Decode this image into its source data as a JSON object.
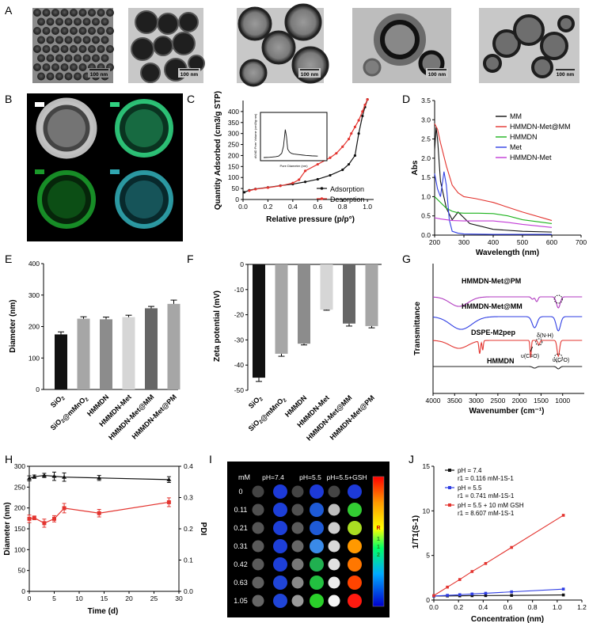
{
  "panels": {
    "A": "A",
    "B": "B",
    "C": "C",
    "D": "D",
    "E": "E",
    "F": "F",
    "G": "G",
    "H": "H",
    "I": "I",
    "J": "J"
  },
  "scale_bar": "100 nm",
  "chart_data": [
    {
      "id": "C",
      "type": "line",
      "xlabel": "Relative pressure (p/p°)",
      "ylabel": "Quantity Adsorbed (cm3/g STP)",
      "xlim": [
        0,
        1.05
      ],
      "ylim": [
        0,
        450
      ],
      "xticks": [
        0.0,
        0.2,
        0.4,
        0.6,
        0.8,
        1.0
      ],
      "yticks": [
        0,
        50,
        100,
        150,
        200,
        250,
        300,
        350,
        400
      ],
      "legend_position": "bottom-right",
      "series": [
        {
          "name": "Adsorption",
          "color": "#111111",
          "x": [
            0.01,
            0.05,
            0.1,
            0.2,
            0.3,
            0.4,
            0.5,
            0.6,
            0.7,
            0.8,
            0.85,
            0.9,
            0.93,
            0.96,
            0.98,
            1.0
          ],
          "y": [
            33,
            42,
            48,
            55,
            63,
            70,
            80,
            92,
            110,
            135,
            160,
            200,
            300,
            380,
            420,
            455
          ]
        },
        {
          "name": "Desorption",
          "color": "#e3342f",
          "x": [
            1.0,
            0.98,
            0.96,
            0.93,
            0.9,
            0.87,
            0.85,
            0.8,
            0.75,
            0.7,
            0.6,
            0.5,
            0.45,
            0.4,
            0.3,
            0.2,
            0.1,
            0.05
          ],
          "y": [
            455,
            430,
            400,
            360,
            330,
            300,
            275,
            240,
            210,
            190,
            160,
            130,
            90,
            75,
            62,
            54,
            47,
            40
          ]
        }
      ],
      "inset": {
        "xlabel": "Pore Diameter (nm)",
        "ylabel": "dV/dD Pore Volume (cm3/g·nm)",
        "xlim": [
          0,
          10
        ],
        "ylim": [
          0,
          0.3
        ],
        "x": [
          0,
          1,
          2,
          2.5,
          3,
          3.3,
          3.6,
          3.8,
          4,
          4.3,
          4.6,
          5,
          6,
          7,
          8,
          9
        ],
        "y": [
          0.0,
          0.002,
          0.006,
          0.01,
          0.03,
          0.08,
          0.2,
          0.15,
          0.06,
          0.04,
          0.03,
          0.025,
          0.02,
          0.015,
          0.012,
          0.01
        ]
      }
    },
    {
      "id": "D",
      "type": "line",
      "xlabel": "Wavelength (nm)",
      "ylabel": "Abs",
      "xlim": [
        200,
        700
      ],
      "ylim": [
        0,
        3.5
      ],
      "xticks": [
        200,
        300,
        400,
        500,
        600,
        700
      ],
      "yticks": [
        0.0,
        0.5,
        1.0,
        1.5,
        2.0,
        2.5,
        3.0,
        3.5
      ],
      "legend_position": "top-right",
      "series": [
        {
          "name": "MM",
          "color": "#111111",
          "x": [
            200,
            205,
            210,
            220,
            240,
            260,
            280,
            300,
            320,
            400,
            500,
            600
          ],
          "y": [
            2.2,
            2.8,
            2.5,
            1.4,
            0.7,
            0.4,
            0.6,
            0.45,
            0.3,
            0.15,
            0.1,
            0.08
          ]
        },
        {
          "name": "HMMDN-Met@MM",
          "color": "#e3342f",
          "x": [
            200,
            210,
            220,
            240,
            260,
            280,
            300,
            340,
            400,
            500,
            600
          ],
          "y": [
            2.9,
            2.75,
            2.4,
            1.8,
            1.3,
            1.1,
            1.0,
            0.95,
            0.85,
            0.6,
            0.38
          ]
        },
        {
          "name": "HMMDN",
          "color": "#1db31d",
          "x": [
            200,
            220,
            240,
            260,
            280,
            300,
            350,
            400,
            450,
            500,
            600
          ],
          "y": [
            1.0,
            0.85,
            0.7,
            0.62,
            0.58,
            0.57,
            0.57,
            0.56,
            0.5,
            0.4,
            0.3
          ]
        },
        {
          "name": "Met",
          "color": "#2f3ee3",
          "x": [
            200,
            210,
            220,
            232,
            240,
            250,
            260,
            280,
            300,
            400,
            600
          ],
          "y": [
            1.6,
            1.2,
            1.0,
            1.65,
            1.3,
            0.4,
            0.1,
            0.05,
            0.03,
            0.02,
            0.02
          ]
        },
        {
          "name": "HMMDN-Met",
          "color": "#c23ad6",
          "x": [
            200,
            220,
            240,
            260,
            300,
            350,
            400,
            450,
            500,
            600
          ],
          "y": [
            0.45,
            0.42,
            0.4,
            0.38,
            0.37,
            0.37,
            0.37,
            0.33,
            0.28,
            0.2
          ]
        }
      ]
    },
    {
      "id": "E",
      "type": "bar",
      "ylabel": "Diameter (nm)",
      "ylim": [
        0,
        400
      ],
      "yticks": [
        0,
        100,
        200,
        300,
        400
      ],
      "categories": [
        "SiO2",
        "SiO2@mMnO2",
        "HMMDN",
        "HMMDN-Met",
        "HMMDN-Met@MM",
        "HMMDN-Met@PM"
      ],
      "values": [
        175,
        225,
        223,
        230,
        258,
        272
      ],
      "errors": [
        8,
        6,
        7,
        6,
        6,
        12
      ],
      "colors": [
        "#111111",
        "#a6a6a6",
        "#8c8c8c",
        "#d6d6d6",
        "#666666",
        "#a6a6a6"
      ]
    },
    {
      "id": "F",
      "type": "bar",
      "ylabel": "Zeta potential (mV)",
      "ylim": [
        -50,
        0
      ],
      "yticks": [
        0,
        -10,
        -20,
        -30,
        -40,
        -50
      ],
      "categories": [
        "SiO2",
        "SiO2@mMnO2",
        "HMMDN",
        "HMMDN-Met",
        "HMMDN-Met@MM",
        "HMMDN-Met@PM"
      ],
      "values": [
        -45,
        -35.5,
        -31.5,
        -18,
        -23.5,
        -24.5
      ],
      "errors": [
        1.5,
        1,
        0.5,
        0.2,
        1,
        0.7
      ],
      "colors": [
        "#111111",
        "#a6a6a6",
        "#8c8c8c",
        "#d6d6d6",
        "#666666",
        "#a6a6a6"
      ]
    },
    {
      "id": "G",
      "type": "line",
      "xlabel": "Wavenumber (cm⁻¹)",
      "ylabel": "Transmittance",
      "xlim": [
        4000,
        500
      ],
      "xticks": [
        4000,
        3500,
        3000,
        2500,
        2000,
        1500,
        1000
      ],
      "series_labels": [
        "HMMDN-Met@PM",
        "HMMDN-Met@MM",
        "DSPE-M2pep",
        "HMMDN"
      ],
      "annotations": [
        "δ(N-H)",
        "υ(C=O)",
        "υ(C-O)"
      ]
    },
    {
      "id": "H",
      "type": "line",
      "xlabel": "Time (d)",
      "ylabel": "Diameter (nm)",
      "y2label": "PDI",
      "xlim": [
        0,
        30
      ],
      "ylim": [
        0,
        300
      ],
      "y2lim": [
        0,
        0.4
      ],
      "xticks": [
        0,
        5,
        10,
        15,
        20,
        25,
        30
      ],
      "yticks": [
        0,
        50,
        100,
        150,
        200,
        250,
        300
      ],
      "y2ticks": [
        0.0,
        0.1,
        0.2,
        0.3,
        0.4
      ],
      "series": [
        {
          "name": "Diameter",
          "axis": "left",
          "color": "#111111",
          "x": [
            0,
            1,
            3,
            5,
            7,
            14,
            28
          ],
          "y": [
            271,
            275,
            278,
            276,
            274,
            272,
            268
          ],
          "errors": [
            6,
            4,
            5,
            10,
            10,
            6,
            7
          ]
        },
        {
          "name": "PDI",
          "axis": "right",
          "color": "#e3342f",
          "x": [
            0,
            1,
            3,
            5,
            7,
            14,
            28
          ],
          "y": [
            0.232,
            0.235,
            0.218,
            0.232,
            0.266,
            0.25,
            0.285
          ],
          "errors": [
            0.012,
            0.006,
            0.013,
            0.01,
            0.015,
            0.012,
            0.014
          ]
        }
      ]
    },
    {
      "id": "I",
      "type": "heatmap",
      "unit": "mM",
      "conditions": [
        "pH=7.4",
        "pH=5.5",
        "pH=5.5+GSH"
      ],
      "concentrations": [
        "0",
        "0.11",
        "0.21",
        "0.31",
        "0.42",
        "0.63",
        "1.05"
      ],
      "colorbar_labels": [
        "R",
        "1",
        "1",
        "2"
      ],
      "wells": [
        [
          "#444444",
          "#1d3ad8",
          "#444444",
          "#1d3ad8",
          "#444444",
          "#1d3ad8"
        ],
        [
          "#505050",
          "#1d3fd8",
          "#505050",
          "#1e5ad6",
          "#bdbdbd",
          "#33cc33"
        ],
        [
          "#555555",
          "#1d3fd8",
          "#5a5a5a",
          "#1e5ad6",
          "#cfcfcf",
          "#aadd22"
        ],
        [
          "#5a5a5a",
          "#1d3fd8",
          "#666666",
          "#3a8ae8",
          "#d9d9d9",
          "#ff9900"
        ],
        [
          "#5a5a5a",
          "#1d3fd8",
          "#777777",
          "#20b050",
          "#e0e0e0",
          "#ff7700"
        ],
        [
          "#606060",
          "#2045d8",
          "#888888",
          "#22c040",
          "#ebebeb",
          "#ff4400"
        ],
        [
          "#666666",
          "#2045d8",
          "#9a9a9a",
          "#2ad02a",
          "#f4f4f4",
          "#ff1a10"
        ]
      ]
    },
    {
      "id": "J",
      "type": "line",
      "xlabel": "Concentration (nm)",
      "ylabel": "1/T1(S-1)",
      "xlim": [
        0,
        1.2
      ],
      "ylim": [
        0,
        15
      ],
      "xticks": [
        0.0,
        0.2,
        0.4,
        0.6,
        0.8,
        1.0,
        1.2
      ],
      "yticks": [
        0,
        5,
        10,
        15
      ],
      "legend_position": "top-left",
      "series": [
        {
          "name": "pH = 7.4",
          "r1": "r1 = 0.116 mM-1S-1",
          "color": "#111111",
          "x": [
            0,
            0.11,
            0.21,
            0.31,
            0.42,
            0.63,
            1.05
          ],
          "y": [
            0.45,
            0.46,
            0.47,
            0.49,
            0.5,
            0.52,
            0.57
          ]
        },
        {
          "name": "pH = 5.5",
          "r1": "r1 = 0.741 mM-1S-1",
          "color": "#2f3ee3",
          "x": [
            0,
            0.11,
            0.21,
            0.31,
            0.42,
            0.63,
            1.05
          ],
          "y": [
            0.45,
            0.53,
            0.6,
            0.68,
            0.76,
            0.92,
            1.23
          ]
        },
        {
          "name": "pH = 5.5 + 10 mM GSH",
          "r1": "r1 = 8.607 mM-1S-1",
          "color": "#e3342f",
          "x": [
            0,
            0.11,
            0.21,
            0.31,
            0.42,
            0.63,
            1.05
          ],
          "y": [
            0.5,
            1.45,
            2.3,
            3.2,
            4.1,
            5.9,
            9.5
          ]
        }
      ]
    }
  ]
}
